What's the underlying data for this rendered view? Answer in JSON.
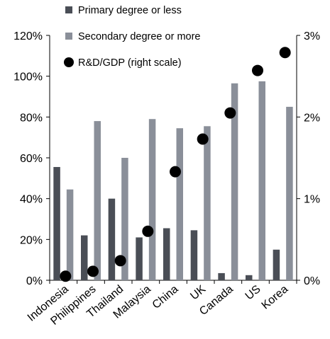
{
  "chart_data": {
    "type": "bar",
    "categories": [
      "Indonesia",
      "Philippines",
      "Thailand",
      "Malaysia",
      "China",
      "UK",
      "Canada",
      "US",
      "Korea"
    ],
    "series": [
      {
        "name": "Primary degree or less",
        "kind": "bar",
        "axis": "left",
        "color": "#4a4e56",
        "values": [
          55.5,
          22,
          40,
          21,
          25.5,
          24.5,
          3.5,
          2.5,
          15
        ]
      },
      {
        "name": "Secondary degree or more",
        "kind": "bar",
        "axis": "left",
        "color": "#8a8f99",
        "values": [
          44.5,
          78,
          60,
          79,
          74.5,
          75.5,
          96.5,
          97.5,
          85
        ]
      },
      {
        "name": "R&D/GDP (right scale)",
        "kind": "scatter",
        "axis": "right",
        "color": "#000000",
        "values": [
          0.05,
          0.11,
          0.24,
          0.6,
          1.33,
          1.73,
          2.05,
          2.57,
          2.79
        ]
      }
    ],
    "ylim_left": [
      0,
      120
    ],
    "yticks_left": [
      "0%",
      "20%",
      "40%",
      "60%",
      "80%",
      "100%",
      "120%"
    ],
    "ylim_right": [
      0,
      3
    ],
    "yticks_right": [
      "0%",
      "1%",
      "2%",
      "3%"
    ],
    "legend_position": "top-left",
    "grid": false
  }
}
